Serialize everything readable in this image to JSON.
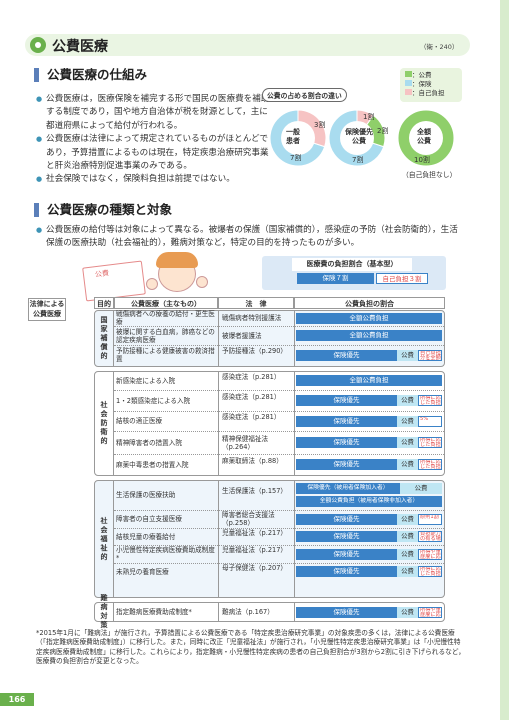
{
  "header": {
    "title": "公費医療",
    "ref": "（衛・240）"
  },
  "sec1": {
    "title": "公費医療の仕組み",
    "bullets": [
      "公費医療は，医療保険を補完する形で国民の医療費を補助する制度であり，国や地方自治体が税を財源として，主に都道府県によって給付が行われる。",
      "公費医療は法律によって規定されているものがほとんどであり，予算措置によるものは現在，特定疾患治療研究事業と肝炎治療特別促進事業のみである。",
      "社会保険ではなく，保険料負担は前提ではない。"
    ]
  },
  "pies": {
    "label": "公費の占める割合の違い",
    "legend": [
      "：公費",
      "：保険",
      "：自己負担"
    ],
    "colors": {
      "public": "#8fcf6a",
      "insurance": "#a9dcef",
      "self": "#f6c3c3"
    },
    "items": [
      {
        "center": "一般\n患者",
        "shares": {
          "insurance": 7,
          "self": 3
        },
        "label_a": "3割",
        "label_b": "7割"
      },
      {
        "center": "保険優先\n公費",
        "shares": {
          "insurance": 7,
          "public": 2,
          "self": 1
        },
        "label_a": "1割",
        "label_b": "2割",
        "label_c": "7割"
      },
      {
        "center": "全額\n公費",
        "shares": {
          "public": 10
        },
        "label_a": "10割",
        "sub": "（自己負担なし）"
      }
    ]
  },
  "sec2": {
    "title": "公費医療の種類と対象",
    "bullet": "公費医療の給付等は対象によって異なる。被爆者の保護（国家補償的），感染症の予防（社会防衛的），生活保護の医療扶助（社会福祉的），難病対策など，特定の目的を持ったものが多い。"
  },
  "illustration": {
    "sign": "公費"
  },
  "burden_header": {
    "title": "医療費の負担割合（基本型）",
    "insurance": "保険７割",
    "self": "自己負担３割"
  },
  "table": {
    "side_label": "法律による\n公費医療",
    "columns": [
      "目的",
      "公費医療（主なもの）",
      "法　律",
      "公費負担の割合"
    ],
    "groups": [
      {
        "category": "国家補償的",
        "rows": [
          {
            "name": "戦傷病者への療養の給付・更生医療",
            "law": "戦傷病者特別援護法",
            "full": "全額公費負担"
          },
          {
            "name": "被爆に関する白血病，肺癌などの認定疾病医療",
            "law": "被爆者援護法",
            "full": "全額公費負担"
          },
          {
            "name": "予防接種による健康被害の救済措置",
            "law": "予防接種法（p.290）",
            "ins": "保険優先",
            "pub": "公費",
            "self": "自己負担分を全額公費負担"
          }
        ]
      },
      {
        "category": "社会防衛的",
        "rows": [
          {
            "name": "新感染症による入院",
            "law": "感染症法（p.281）",
            "full": "全額公費負担"
          },
          {
            "name": "1・2類感染症による入院",
            "law": "感染症法（p.281）",
            "ins": "保険優先",
            "pub": "公費",
            "self": "所得に応じた負担"
          },
          {
            "name": "結核の適正医療",
            "law": "感染症法（p.281）",
            "ins": "保険優先",
            "pub": "公費",
            "self": "5%"
          },
          {
            "name": "精神障害者の措置入院",
            "law": "精神保健福祉法（p.264）",
            "ins": "保険優先",
            "pub": "公費",
            "self": "所得に応じた負担"
          },
          {
            "name": "麻薬中毒患者の措置入院",
            "law": "麻薬取締法（p.88）",
            "ins": "保険優先",
            "pub": "公費",
            "self": "所得に応じた負担"
          }
        ]
      },
      {
        "category": "社会福祉的",
        "rows": [
          {
            "name": "生活保護の医療扶助",
            "law": "生活保護法（p.157）",
            "ins": "保険優先（被用者保険加入者）",
            "pub": "公費",
            "full": "全額公費負担（被用者保険非加入者）"
          },
          {
            "name": "障害者の自立支援医療",
            "law": "障害者総合支援法（p.258）",
            "ins": "保険優先",
            "pub": "公費",
            "self": "原則1割"
          },
          {
            "name": "結核児童の療養給付",
            "law": "児童福祉法（p.217）",
            "ins": "保険優先",
            "pub": "公費",
            "self": "負担能力の有る場合"
          },
          {
            "name": "小児慢性特定疾病医療費助成制度*",
            "law": "児童福祉法（p.217）",
            "ins": "保険優先",
            "pub": "公費",
            "self": "所得や重症度に応じた負担"
          },
          {
            "name": "未熟児の養育医療",
            "law": "母子保健法（p.207）",
            "ins": "保険優先",
            "pub": "公費",
            "self": "所得に応じた負担"
          }
        ]
      },
      {
        "category": "難病対策",
        "rows": [
          {
            "name": "指定難病医療費助成制度*",
            "law": "難病法（p.167）",
            "ins": "保険優先",
            "pub": "公費",
            "self": "所得や重症度に応じた負担"
          }
        ]
      }
    ]
  },
  "footnote": "*2015年1月に「難病法」が施行され，予算措置による公費医療である「特定疾患治療研究事業」の対象疾患の多くは，法律による公費医療（「指定難病医療費助成制度」）に移行した。また，同時に改正「児童福祉法」が施行され，「小児慢性特定疾患治療研究事業」は「小児慢性特定疾病医療費助成制度」に移行した。これらにより，指定難病・小児慢性特定疾病の患者の自己負担割合が3割から2割に引き下げられるなど，医療費の負担割合が変更となった。",
  "page_number": "166"
}
